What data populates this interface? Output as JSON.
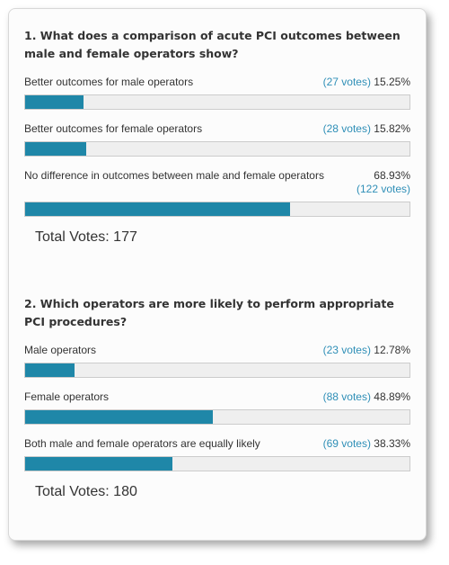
{
  "polls": [
    {
      "question": "1. What does a comparison of acute PCI outcomes between male and female operators show?",
      "answers": [
        {
          "label": "Better outcomes for male operators",
          "votes": "(27 votes)",
          "percent": "15.25%",
          "fraction": 0.1525
        },
        {
          "label": "Better outcomes for female operators",
          "votes": "(28 votes)",
          "percent": "15.82%",
          "fraction": 0.1582
        },
        {
          "label": "No difference in outcomes between male and female operators",
          "votes": "(122 votes)",
          "percent": "68.93%",
          "fraction": 0.6893
        }
      ],
      "total": "Total Votes: 177"
    },
    {
      "question": "2. Which operators are more likely to perform appropriate PCI procedures?",
      "answers": [
        {
          "label": "Male operators",
          "votes": "(23 votes)",
          "percent": "12.78%",
          "fraction": 0.1278
        },
        {
          "label": "Female operators",
          "votes": "(88 votes)",
          "percent": "48.89%",
          "fraction": 0.4889
        },
        {
          "label": "Both male and female operators are equally likely",
          "votes": "(69 votes)",
          "percent": "38.33%",
          "fraction": 0.3833
        }
      ],
      "total": "Total Votes: 180"
    }
  ],
  "colors": {
    "bar_fill": "#1f87a8",
    "bar_track": "#efefef",
    "vote_link": "#2f8fb7",
    "text": "#333333"
  }
}
